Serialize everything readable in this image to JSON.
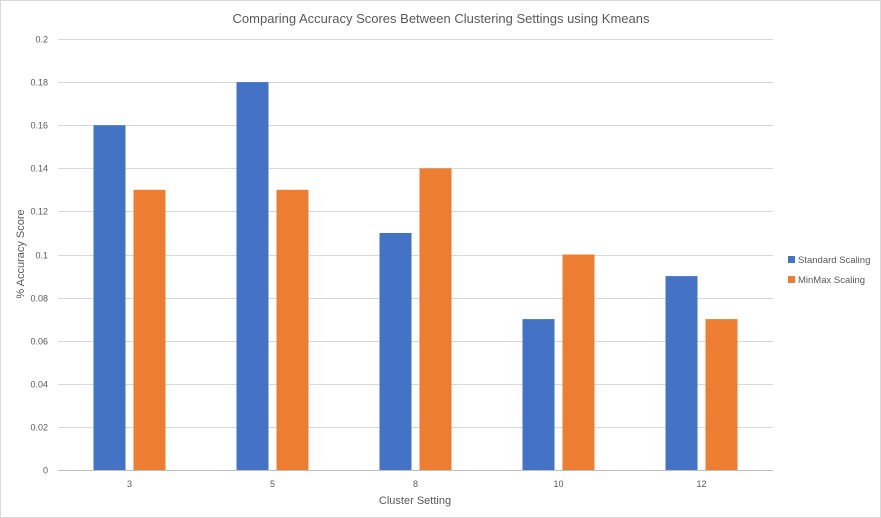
{
  "chart_data": {
    "type": "bar",
    "title": "Comparing Accuracy Scores Between Clustering Settings using Kmeans",
    "xlabel": "Cluster Setting",
    "ylabel": "% Accuracy Score",
    "categories": [
      "3",
      "5",
      "8",
      "10",
      "12"
    ],
    "series": [
      {
        "name": "Standard Scaling",
        "color": "#4472C4",
        "values": [
          0.16,
          0.18,
          0.11,
          0.07,
          0.09
        ]
      },
      {
        "name": "MinMax Scaling",
        "color": "#ED7D31",
        "values": [
          0.13,
          0.13,
          0.14,
          0.1,
          0.07
        ]
      }
    ],
    "ylim": [
      0,
      0.2
    ],
    "yticks": [
      "0",
      "0.02",
      "0.04",
      "0.06",
      "0.08",
      "0.1",
      "0.12",
      "0.14",
      "0.16",
      "0.18",
      "0.2"
    ],
    "grid": true,
    "legend_position": "right"
  }
}
